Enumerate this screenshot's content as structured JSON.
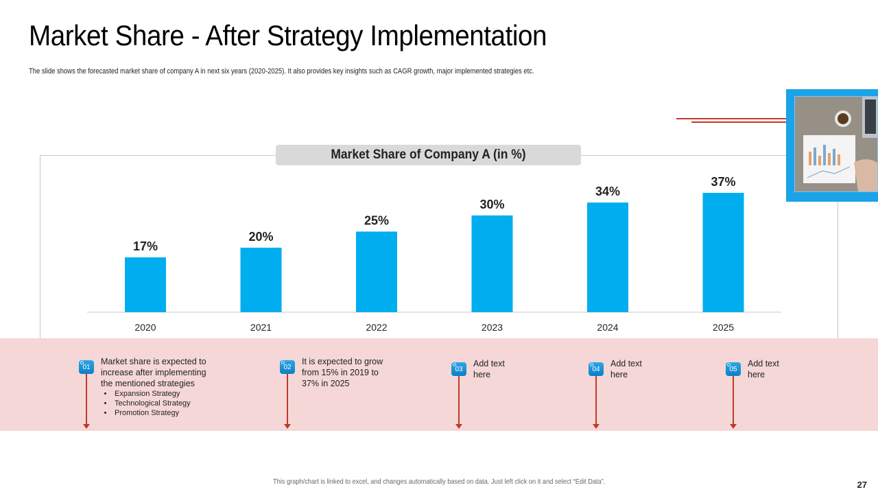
{
  "slide": {
    "title": "Market Share - After Strategy Implementation",
    "subtitle": "The slide shows the forecasted market share of company A in next six years (2020-2025). It also provides key insights such as CAGR growth, major implemented strategies etc.",
    "footer": "This graph/chart is linked to excel, and changes automatically  based on data. Just left click on it and select “Edit Data”.",
    "page_number": "27"
  },
  "colors": {
    "bar": "#00aeef",
    "accent_red": "#c0392b",
    "band": "#f5d7d7",
    "photo_frame": "#1aa3e8"
  },
  "chart_data": {
    "type": "bar",
    "title": "Market Share of Company A (in %)",
    "categories": [
      "2020",
      "2021",
      "2022",
      "2023",
      "2024",
      "2025"
    ],
    "values": [
      17,
      20,
      25,
      30,
      34,
      37
    ],
    "value_labels": [
      "17%",
      "20%",
      "25%",
      "30%",
      "34%",
      "37%"
    ],
    "xlabel": "",
    "ylabel": "",
    "ylim": [
      0,
      40
    ],
    "grid": false,
    "legend": "none"
  },
  "notes": [
    {
      "badge": "01",
      "text_lines": [
        "Market share is expected to",
        "increase after implementing",
        "the mentioned strategies"
      ],
      "bullets": [
        "Expansion Strategy",
        "Technological Strategy",
        "Promotion Strategy"
      ]
    },
    {
      "badge": "02",
      "text_lines": [
        "It is expected to grow",
        "from 15% in 2019 to",
        "37% in 2025"
      ],
      "bullets": []
    },
    {
      "badge": "03",
      "text_lines": [
        "Add text",
        "here"
      ],
      "bullets": []
    },
    {
      "badge": "04",
      "text_lines": [
        "Add text",
        "here"
      ],
      "bullets": []
    },
    {
      "badge": "05",
      "text_lines": [
        "Add text",
        "here"
      ],
      "bullets": []
    }
  ],
  "image": {
    "icon": "desk-laptop-photo-icon"
  }
}
